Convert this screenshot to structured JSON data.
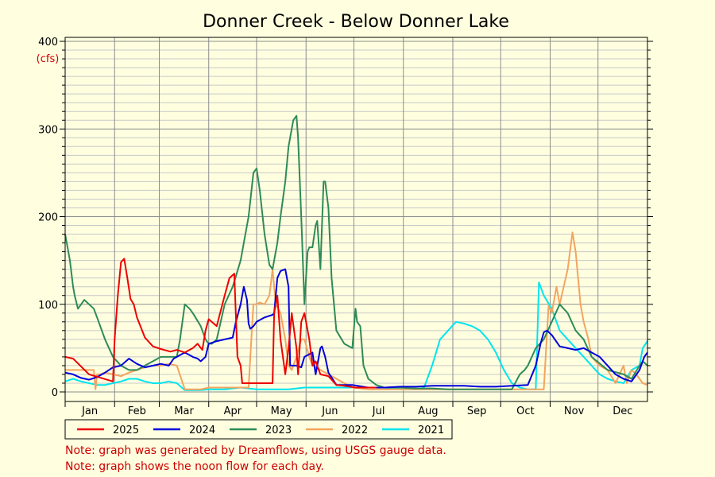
{
  "chart_data": {
    "type": "line",
    "title": "Donner Creek - Below Donner Lake",
    "y_unit": "(cfs)",
    "ylim": [
      0,
      400
    ],
    "yticks": [
      0,
      100,
      200,
      300,
      400
    ],
    "xlim": [
      0,
      365
    ],
    "months": [
      "Jan",
      "Feb",
      "Mar",
      "Apr",
      "May",
      "Jun",
      "Jul",
      "Aug",
      "Sep",
      "Oct",
      "Nov",
      "Dec"
    ],
    "grid": true,
    "legend_position": "bottom",
    "series": [
      {
        "name": "2025",
        "color": "#ee0000",
        "x": [
          0,
          5,
          15,
          30,
          31,
          33,
          35,
          37,
          39,
          41,
          43,
          45,
          50,
          55,
          60,
          66,
          70,
          75,
          80,
          83,
          86,
          88,
          90,
          95,
          100,
          103,
          106,
          108,
          110,
          111,
          113,
          116,
          118,
          120,
          125,
          130,
          131,
          133,
          135,
          138,
          140,
          142,
          145,
          146,
          148,
          150,
          153,
          155,
          157,
          160,
          165,
          170,
          175,
          182,
          190,
          195
        ],
        "y": [
          40,
          38,
          20,
          12,
          60,
          110,
          148,
          152,
          130,
          106,
          100,
          85,
          62,
          52,
          49,
          46,
          48,
          45,
          50,
          55,
          48,
          70,
          83,
          75,
          110,
          130,
          135,
          40,
          30,
          10,
          10,
          10,
          10,
          10,
          10,
          10,
          90,
          110,
          60,
          20,
          50,
          90,
          50,
          20,
          80,
          90,
          60,
          30,
          35,
          20,
          18,
          8,
          7,
          5,
          5,
          5
        ]
      },
      {
        "name": "2024",
        "color": "#0000dd",
        "x": [
          0,
          5,
          10,
          15,
          20,
          25,
          30,
          35,
          40,
          45,
          50,
          55,
          60,
          65,
          68,
          70,
          75,
          80,
          83,
          85,
          88,
          90,
          95,
          100,
          105,
          107,
          110,
          112,
          114,
          115,
          116,
          118,
          120,
          125,
          130,
          131,
          133,
          135,
          138,
          140,
          141,
          143,
          145,
          148,
          150,
          155,
          157,
          160,
          161,
          163,
          165,
          170,
          180,
          190,
          200,
          210,
          220,
          230,
          240,
          250,
          260,
          270,
          280,
          290,
          295,
          298,
          300,
          302,
          305,
          310,
          315,
          320,
          325,
          330,
          335,
          340,
          345,
          350,
          355,
          360,
          363,
          365
        ],
        "y": [
          22,
          20,
          16,
          14,
          17,
          22,
          28,
          30,
          38,
          32,
          28,
          30,
          32,
          30,
          38,
          40,
          45,
          40,
          38,
          35,
          40,
          55,
          58,
          60,
          62,
          80,
          100,
          120,
          105,
          78,
          72,
          75,
          80,
          85,
          88,
          90,
          130,
          138,
          140,
          120,
          30,
          30,
          30,
          28,
          40,
          45,
          20,
          50,
          52,
          40,
          22,
          8,
          8,
          5,
          5,
          6,
          6,
          7,
          7,
          7,
          6,
          6,
          7,
          8,
          30,
          55,
          68,
          70,
          65,
          52,
          50,
          48,
          50,
          45,
          40,
          30,
          20,
          15,
          12,
          25,
          40,
          45
        ]
      },
      {
        "name": "2023",
        "color": "#2e8b57",
        "x": [
          0,
          3,
          5,
          6,
          8,
          10,
          12,
          15,
          18,
          20,
          25,
          30,
          35,
          40,
          45,
          50,
          55,
          60,
          65,
          70,
          72,
          75,
          78,
          80,
          85,
          88,
          90,
          92,
          95,
          100,
          105,
          110,
          115,
          118,
          120,
          122,
          125,
          128,
          130,
          133,
          135,
          138,
          140,
          143,
          145,
          146,
          148,
          150,
          152,
          153,
          155,
          157,
          158,
          160,
          162,
          163,
          165,
          167,
          170,
          175,
          180,
          182,
          183,
          185,
          187,
          190,
          195,
          200,
          210,
          220,
          230,
          240,
          250,
          260,
          270,
          280,
          285,
          288,
          290,
          295,
          300,
          305,
          310,
          315,
          320,
          325,
          330,
          340,
          350,
          355,
          360,
          362,
          365
        ],
        "y": [
          180,
          150,
          120,
          110,
          95,
          100,
          105,
          100,
          95,
          85,
          60,
          40,
          30,
          25,
          25,
          30,
          35,
          40,
          40,
          40,
          60,
          100,
          95,
          90,
          75,
          60,
          55,
          55,
          60,
          100,
          120,
          150,
          200,
          250,
          255,
          230,
          180,
          145,
          140,
          170,
          200,
          240,
          280,
          310,
          315,
          290,
          200,
          100,
          160,
          165,
          165,
          190,
          195,
          140,
          240,
          240,
          210,
          130,
          70,
          55,
          50,
          95,
          80,
          75,
          30,
          15,
          8,
          5,
          5,
          4,
          4,
          3,
          3,
          3,
          3,
          3,
          20,
          25,
          30,
          50,
          60,
          80,
          100,
          90,
          70,
          60,
          40,
          25,
          20,
          15,
          30,
          35,
          30
        ]
      },
      {
        "name": "2022",
        "color": "#f4a460",
        "x": [
          0,
          10,
          18,
          19,
          20,
          22,
          25,
          30,
          35,
          40,
          45,
          50,
          55,
          60,
          65,
          70,
          75,
          80,
          82,
          85,
          90,
          95,
          100,
          105,
          110,
          115,
          117,
          118,
          120,
          122,
          125,
          128,
          130,
          132,
          135,
          138,
          140,
          142,
          145,
          148,
          150,
          153,
          155,
          160,
          165,
          170,
          180,
          190,
          200,
          210,
          220,
          230,
          240,
          250,
          260,
          270,
          280,
          290,
          295,
          300,
          303,
          305,
          308,
          310,
          315,
          318,
          320,
          323,
          325,
          328,
          330,
          335,
          340,
          345,
          350,
          352,
          355,
          358,
          360,
          362,
          365
        ],
        "y": [
          25,
          25,
          25,
          3,
          20,
          20,
          22,
          20,
          18,
          22,
          25,
          28,
          30,
          30,
          32,
          30,
          3,
          3,
          3,
          3,
          5,
          5,
          5,
          5,
          5,
          5,
          70,
          100,
          100,
          102,
          100,
          110,
          140,
          100,
          90,
          60,
          30,
          25,
          40,
          60,
          60,
          40,
          30,
          25,
          20,
          15,
          5,
          3,
          3,
          3,
          3,
          3,
          3,
          3,
          3,
          3,
          3,
          3,
          3,
          3,
          98,
          90,
          120,
          100,
          140,
          182,
          160,
          100,
          80,
          60,
          40,
          30,
          25,
          10,
          30,
          10,
          25,
          20,
          15,
          10,
          8
        ]
      },
      {
        "name": "2021",
        "color": "#00e5ee",
        "x": [
          0,
          5,
          10,
          15,
          20,
          25,
          30,
          35,
          40,
          45,
          50,
          55,
          60,
          65,
          70,
          75,
          80,
          85,
          90,
          100,
          110,
          120,
          130,
          140,
          150,
          160,
          170,
          180,
          190,
          200,
          210,
          220,
          225,
          230,
          235,
          240,
          245,
          250,
          255,
          260,
          265,
          270,
          275,
          280,
          285,
          290,
          295,
          297,
          300,
          305,
          310,
          315,
          320,
          325,
          330,
          335,
          340,
          345,
          350,
          355,
          360,
          362,
          365
        ],
        "y": [
          12,
          15,
          12,
          10,
          8,
          8,
          10,
          12,
          15,
          15,
          12,
          10,
          10,
          12,
          10,
          2,
          2,
          2,
          3,
          3,
          5,
          3,
          3,
          3,
          5,
          5,
          5,
          5,
          5,
          5,
          3,
          3,
          5,
          30,
          60,
          70,
          80,
          78,
          75,
          70,
          60,
          45,
          25,
          10,
          5,
          3,
          3,
          125,
          110,
          95,
          70,
          60,
          50,
          40,
          30,
          20,
          15,
          12,
          10,
          25,
          30,
          50,
          58
        ]
      }
    ],
    "notes": [
      "Note: graph was generated by Dreamflows, using USGS gauge data.",
      "Note: graph shows the noon flow for each day."
    ]
  }
}
